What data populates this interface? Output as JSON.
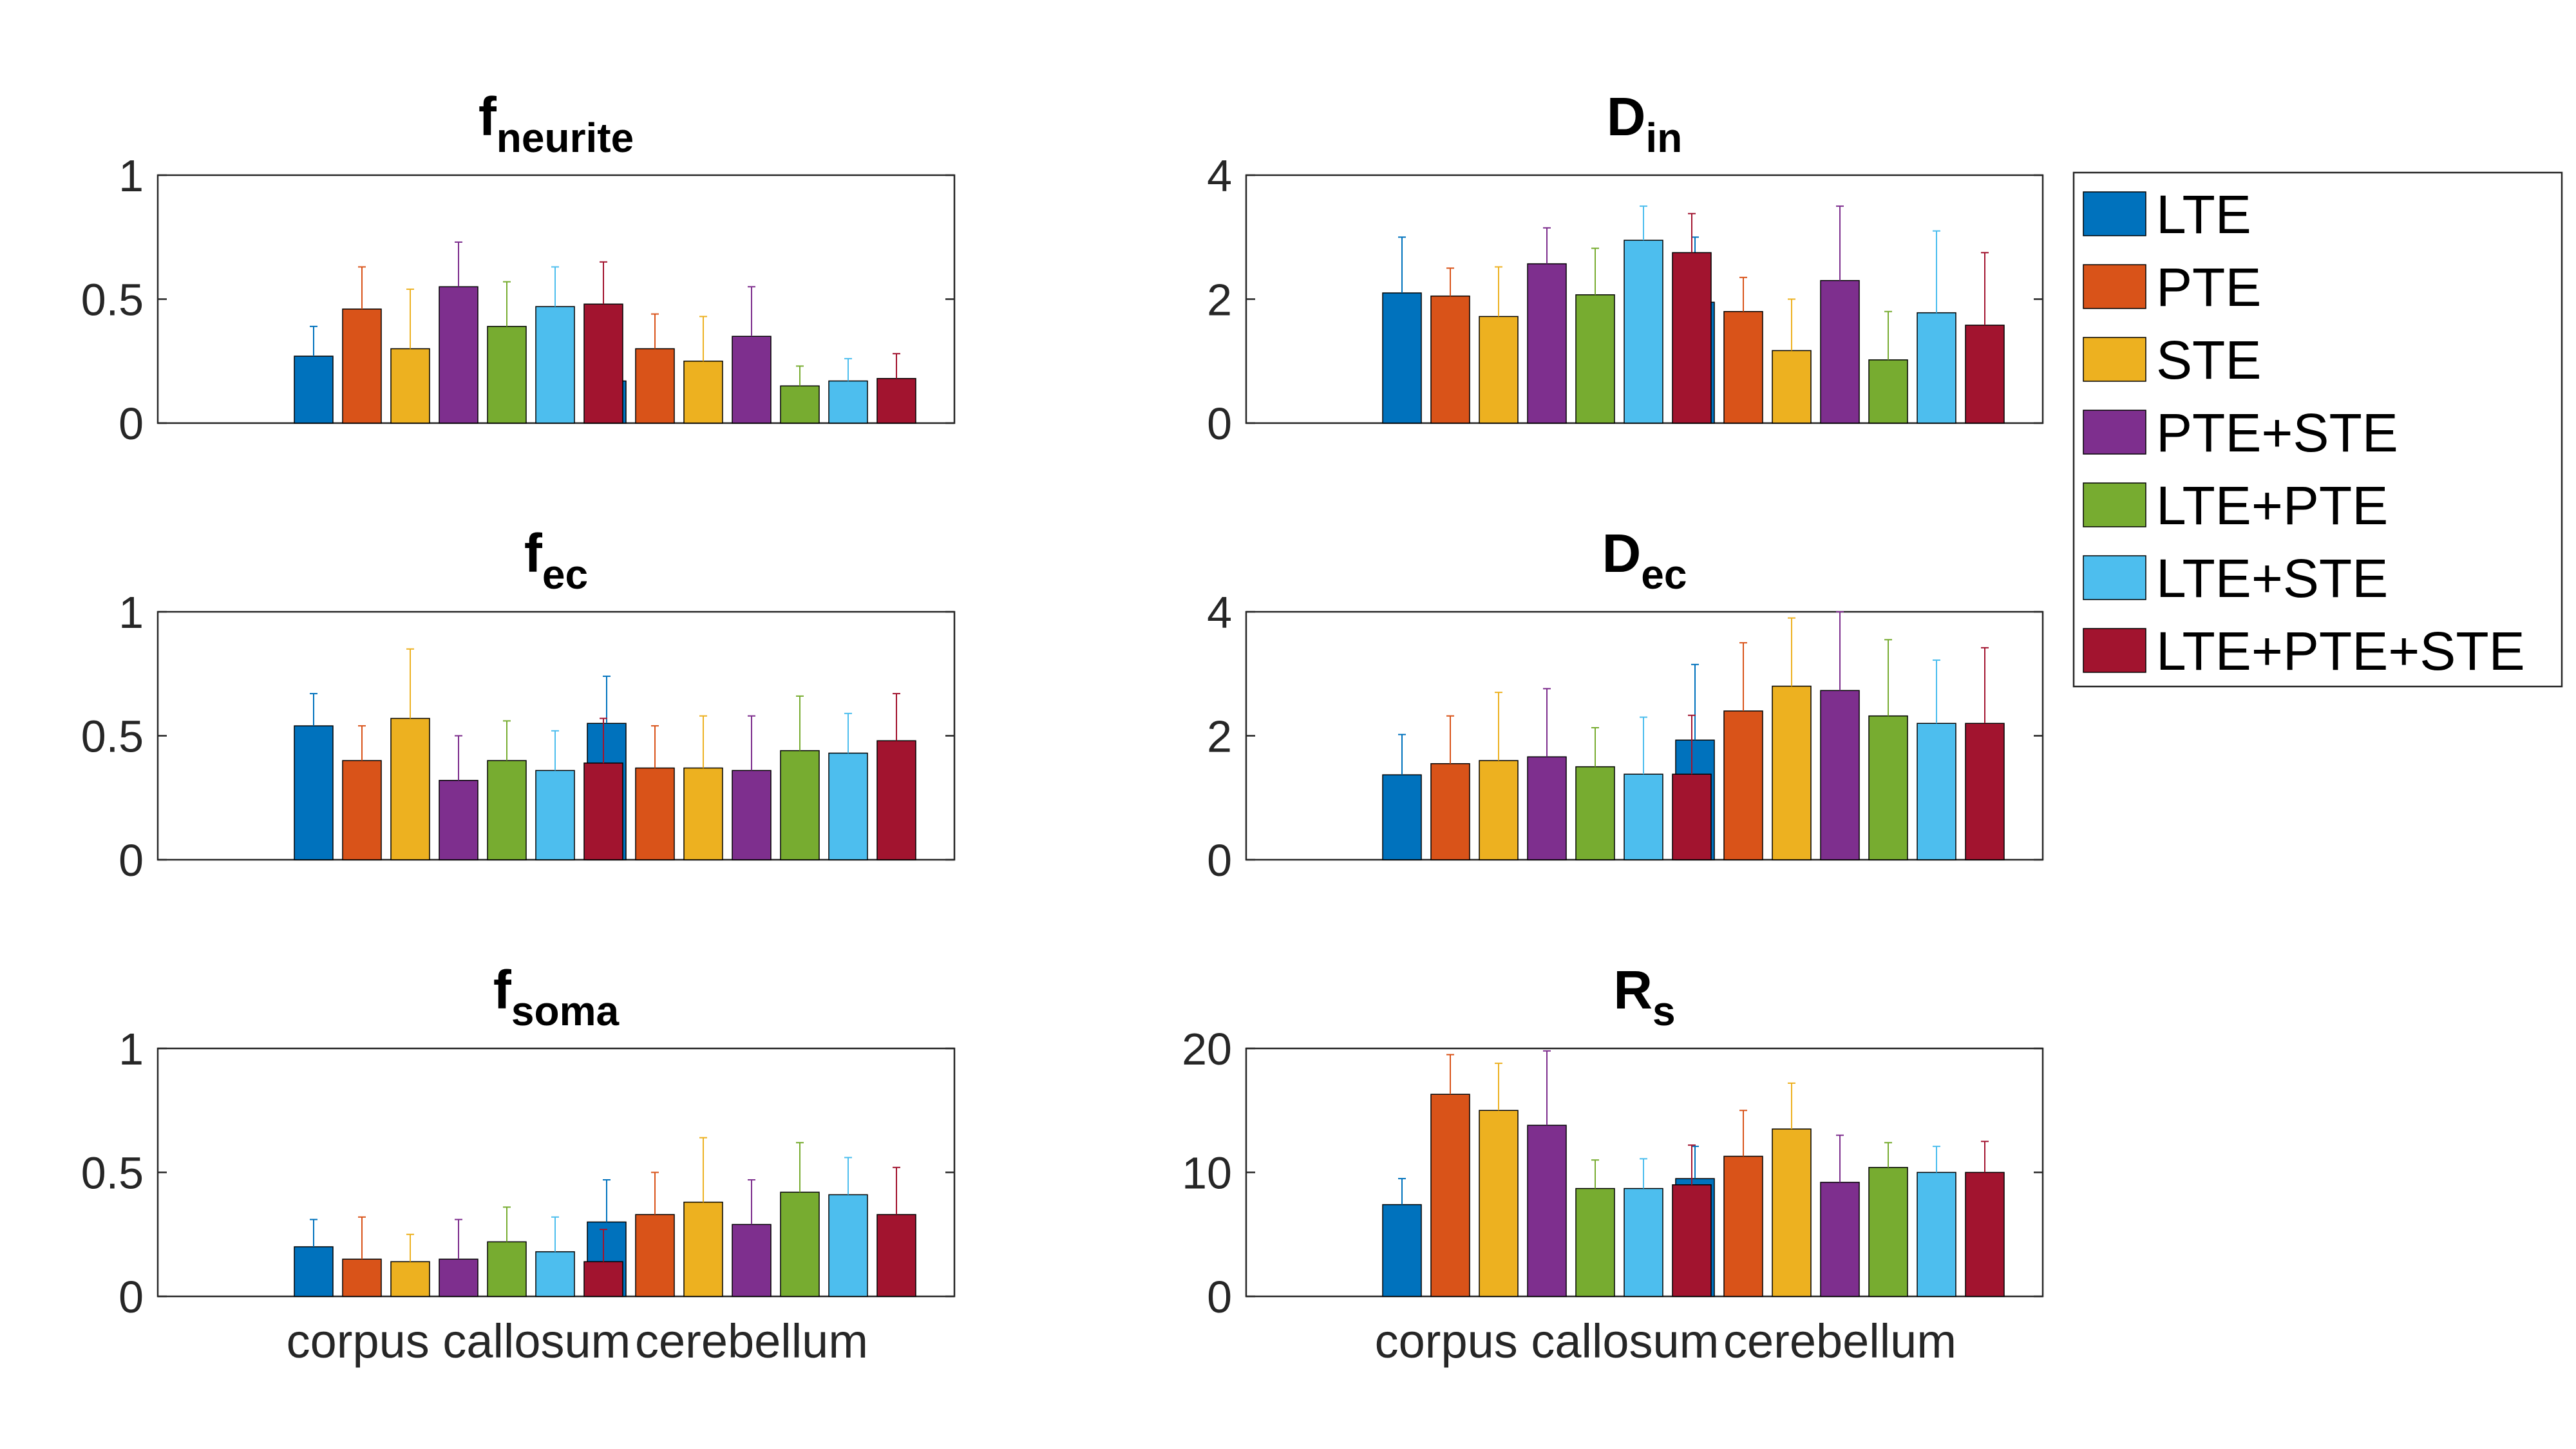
{
  "colors": [
    "#0072BD",
    "#D95319",
    "#EDB120",
    "#7E2F8E",
    "#77AC30",
    "#4DBEEE",
    "#A2142F"
  ],
  "legend": {
    "entries": [
      "LTE",
      "PTE",
      "STE",
      "PTE+STE",
      "LTE+PTE",
      "LTE+STE",
      "LTE+PTE+STE"
    ]
  },
  "chart_data": [
    {
      "type": "bar",
      "title_main": "f",
      "title_sub": "neurite",
      "categories": [
        "corpus callosum",
        "cerebellum"
      ],
      "show_xlabels": false,
      "ylim": [
        0,
        1
      ],
      "yticks": [
        0,
        0.5,
        1
      ],
      "yticklabels": [
        "0",
        "0.5",
        "1"
      ],
      "series": [
        {
          "name": "LTE",
          "values": [
            0.27,
            0.17
          ],
          "errors": [
            0.12,
            0.1
          ]
        },
        {
          "name": "PTE",
          "values": [
            0.46,
            0.3
          ],
          "errors": [
            0.17,
            0.14
          ]
        },
        {
          "name": "STE",
          "values": [
            0.3,
            0.25
          ],
          "errors": [
            0.24,
            0.18
          ]
        },
        {
          "name": "PTE+STE",
          "values": [
            0.55,
            0.35
          ],
          "errors": [
            0.18,
            0.2
          ]
        },
        {
          "name": "LTE+PTE",
          "values": [
            0.39,
            0.15
          ],
          "errors": [
            0.18,
            0.08
          ]
        },
        {
          "name": "LTE+STE",
          "values": [
            0.47,
            0.17
          ],
          "errors": [
            0.16,
            0.09
          ]
        },
        {
          "name": "LTE+PTE+STE",
          "values": [
            0.48,
            0.18
          ],
          "errors": [
            0.17,
            0.1
          ]
        }
      ]
    },
    {
      "type": "bar",
      "title_main": "D",
      "title_sub": "in",
      "categories": [
        "corpus callosum",
        "cerebellum"
      ],
      "show_xlabels": false,
      "ylim": [
        0,
        4
      ],
      "yticks": [
        0,
        2,
        4
      ],
      "yticklabels": [
        "0",
        "2",
        "4"
      ],
      "series": [
        {
          "name": "LTE",
          "values": [
            2.1,
            1.95
          ],
          "errors": [
            0.9,
            1.05
          ]
        },
        {
          "name": "PTE",
          "values": [
            2.05,
            1.8
          ],
          "errors": [
            0.45,
            0.55
          ]
        },
        {
          "name": "STE",
          "values": [
            1.72,
            1.17
          ],
          "errors": [
            0.8,
            0.83
          ]
        },
        {
          "name": "PTE+STE",
          "values": [
            2.57,
            2.3
          ],
          "errors": [
            0.58,
            1.2
          ]
        },
        {
          "name": "LTE+PTE",
          "values": [
            2.07,
            1.02
          ],
          "errors": [
            0.75,
            0.78
          ]
        },
        {
          "name": "LTE+STE",
          "values": [
            2.95,
            1.78
          ],
          "errors": [
            0.55,
            1.32
          ]
        },
        {
          "name": "LTE+PTE+STE",
          "values": [
            2.75,
            1.58
          ],
          "errors": [
            0.63,
            1.17
          ]
        }
      ]
    },
    {
      "type": "bar",
      "title_main": "f",
      "title_sub": "ec",
      "categories": [
        "corpus callosum",
        "cerebellum"
      ],
      "show_xlabels": false,
      "ylim": [
        0,
        1
      ],
      "yticks": [
        0,
        0.5,
        1
      ],
      "yticklabels": [
        "0",
        "0.5",
        "1"
      ],
      "series": [
        {
          "name": "LTE",
          "values": [
            0.54,
            0.55
          ],
          "errors": [
            0.13,
            0.19
          ]
        },
        {
          "name": "PTE",
          "values": [
            0.4,
            0.37
          ],
          "errors": [
            0.14,
            0.17
          ]
        },
        {
          "name": "STE",
          "values": [
            0.57,
            0.37
          ],
          "errors": [
            0.28,
            0.21
          ]
        },
        {
          "name": "PTE+STE",
          "values": [
            0.32,
            0.36
          ],
          "errors": [
            0.18,
            0.22
          ]
        },
        {
          "name": "LTE+PTE",
          "values": [
            0.4,
            0.44
          ],
          "errors": [
            0.16,
            0.22
          ]
        },
        {
          "name": "LTE+STE",
          "values": [
            0.36,
            0.43
          ],
          "errors": [
            0.16,
            0.16
          ]
        },
        {
          "name": "LTE+PTE+STE",
          "values": [
            0.39,
            0.48
          ],
          "errors": [
            0.18,
            0.19
          ]
        }
      ]
    },
    {
      "type": "bar",
      "title_main": "D",
      "title_sub": "ec",
      "categories": [
        "corpus callosum",
        "cerebellum"
      ],
      "show_xlabels": false,
      "ylim": [
        0,
        4
      ],
      "yticks": [
        0,
        2,
        4
      ],
      "yticklabels": [
        "0",
        "2",
        "4"
      ],
      "series": [
        {
          "name": "LTE",
          "values": [
            1.37,
            1.93
          ],
          "errors": [
            0.65,
            1.22
          ]
        },
        {
          "name": "PTE",
          "values": [
            1.55,
            2.4
          ],
          "errors": [
            0.77,
            1.1
          ]
        },
        {
          "name": "STE",
          "values": [
            1.6,
            2.8
          ],
          "errors": [
            1.1,
            1.1
          ]
        },
        {
          "name": "PTE+STE",
          "values": [
            1.66,
            2.73
          ],
          "errors": [
            1.1,
            1.27
          ]
        },
        {
          "name": "LTE+PTE",
          "values": [
            1.5,
            2.32
          ],
          "errors": [
            0.63,
            1.23
          ]
        },
        {
          "name": "LTE+STE",
          "values": [
            1.38,
            2.2
          ],
          "errors": [
            0.92,
            1.02
          ]
        },
        {
          "name": "LTE+PTE+STE",
          "values": [
            1.38,
            2.2
          ],
          "errors": [
            0.95,
            1.22
          ]
        }
      ]
    },
    {
      "type": "bar",
      "title_main": "f",
      "title_sub": "soma",
      "categories": [
        "corpus callosum",
        "cerebellum"
      ],
      "show_xlabels": true,
      "ylim": [
        0,
        1
      ],
      "yticks": [
        0,
        0.5,
        1
      ],
      "yticklabels": [
        "0",
        "0.5",
        "1"
      ],
      "series": [
        {
          "name": "LTE",
          "values": [
            0.2,
            0.3
          ],
          "errors": [
            0.11,
            0.17
          ]
        },
        {
          "name": "PTE",
          "values": [
            0.15,
            0.33
          ],
          "errors": [
            0.17,
            0.17
          ]
        },
        {
          "name": "STE",
          "values": [
            0.14,
            0.38
          ],
          "errors": [
            0.11,
            0.26
          ]
        },
        {
          "name": "PTE+STE",
          "values": [
            0.15,
            0.29
          ],
          "errors": [
            0.16,
            0.18
          ]
        },
        {
          "name": "LTE+PTE",
          "values": [
            0.22,
            0.42
          ],
          "errors": [
            0.14,
            0.2
          ]
        },
        {
          "name": "LTE+STE",
          "values": [
            0.18,
            0.41
          ],
          "errors": [
            0.14,
            0.15
          ]
        },
        {
          "name": "LTE+PTE+STE",
          "values": [
            0.14,
            0.33
          ],
          "errors": [
            0.13,
            0.19
          ]
        }
      ]
    },
    {
      "type": "bar",
      "title_main": "R",
      "title_sub": "s",
      "categories": [
        "corpus callosum",
        "cerebellum"
      ],
      "show_xlabels": true,
      "ylim": [
        0,
        20
      ],
      "yticks": [
        0,
        10,
        20
      ],
      "yticklabels": [
        "0",
        "10",
        "20"
      ],
      "series": [
        {
          "name": "LTE",
          "values": [
            7.4,
            9.5
          ],
          "errors": [
            2.1,
            2.6
          ]
        },
        {
          "name": "PTE",
          "values": [
            16.3,
            11.3
          ],
          "errors": [
            3.2,
            3.7
          ]
        },
        {
          "name": "STE",
          "values": [
            15.0,
            13.5
          ],
          "errors": [
            3.8,
            3.7
          ]
        },
        {
          "name": "PTE+STE",
          "values": [
            13.8,
            9.2
          ],
          "errors": [
            6.0,
            3.8
          ]
        },
        {
          "name": "LTE+PTE",
          "values": [
            8.7,
            10.4
          ],
          "errors": [
            2.3,
            2.0
          ]
        },
        {
          "name": "LTE+STE",
          "values": [
            8.7,
            10.0
          ],
          "errors": [
            2.4,
            2.1
          ]
        },
        {
          "name": "LTE+PTE+STE",
          "values": [
            9.0,
            10.0
          ],
          "errors": [
            3.2,
            2.5
          ]
        }
      ]
    }
  ]
}
